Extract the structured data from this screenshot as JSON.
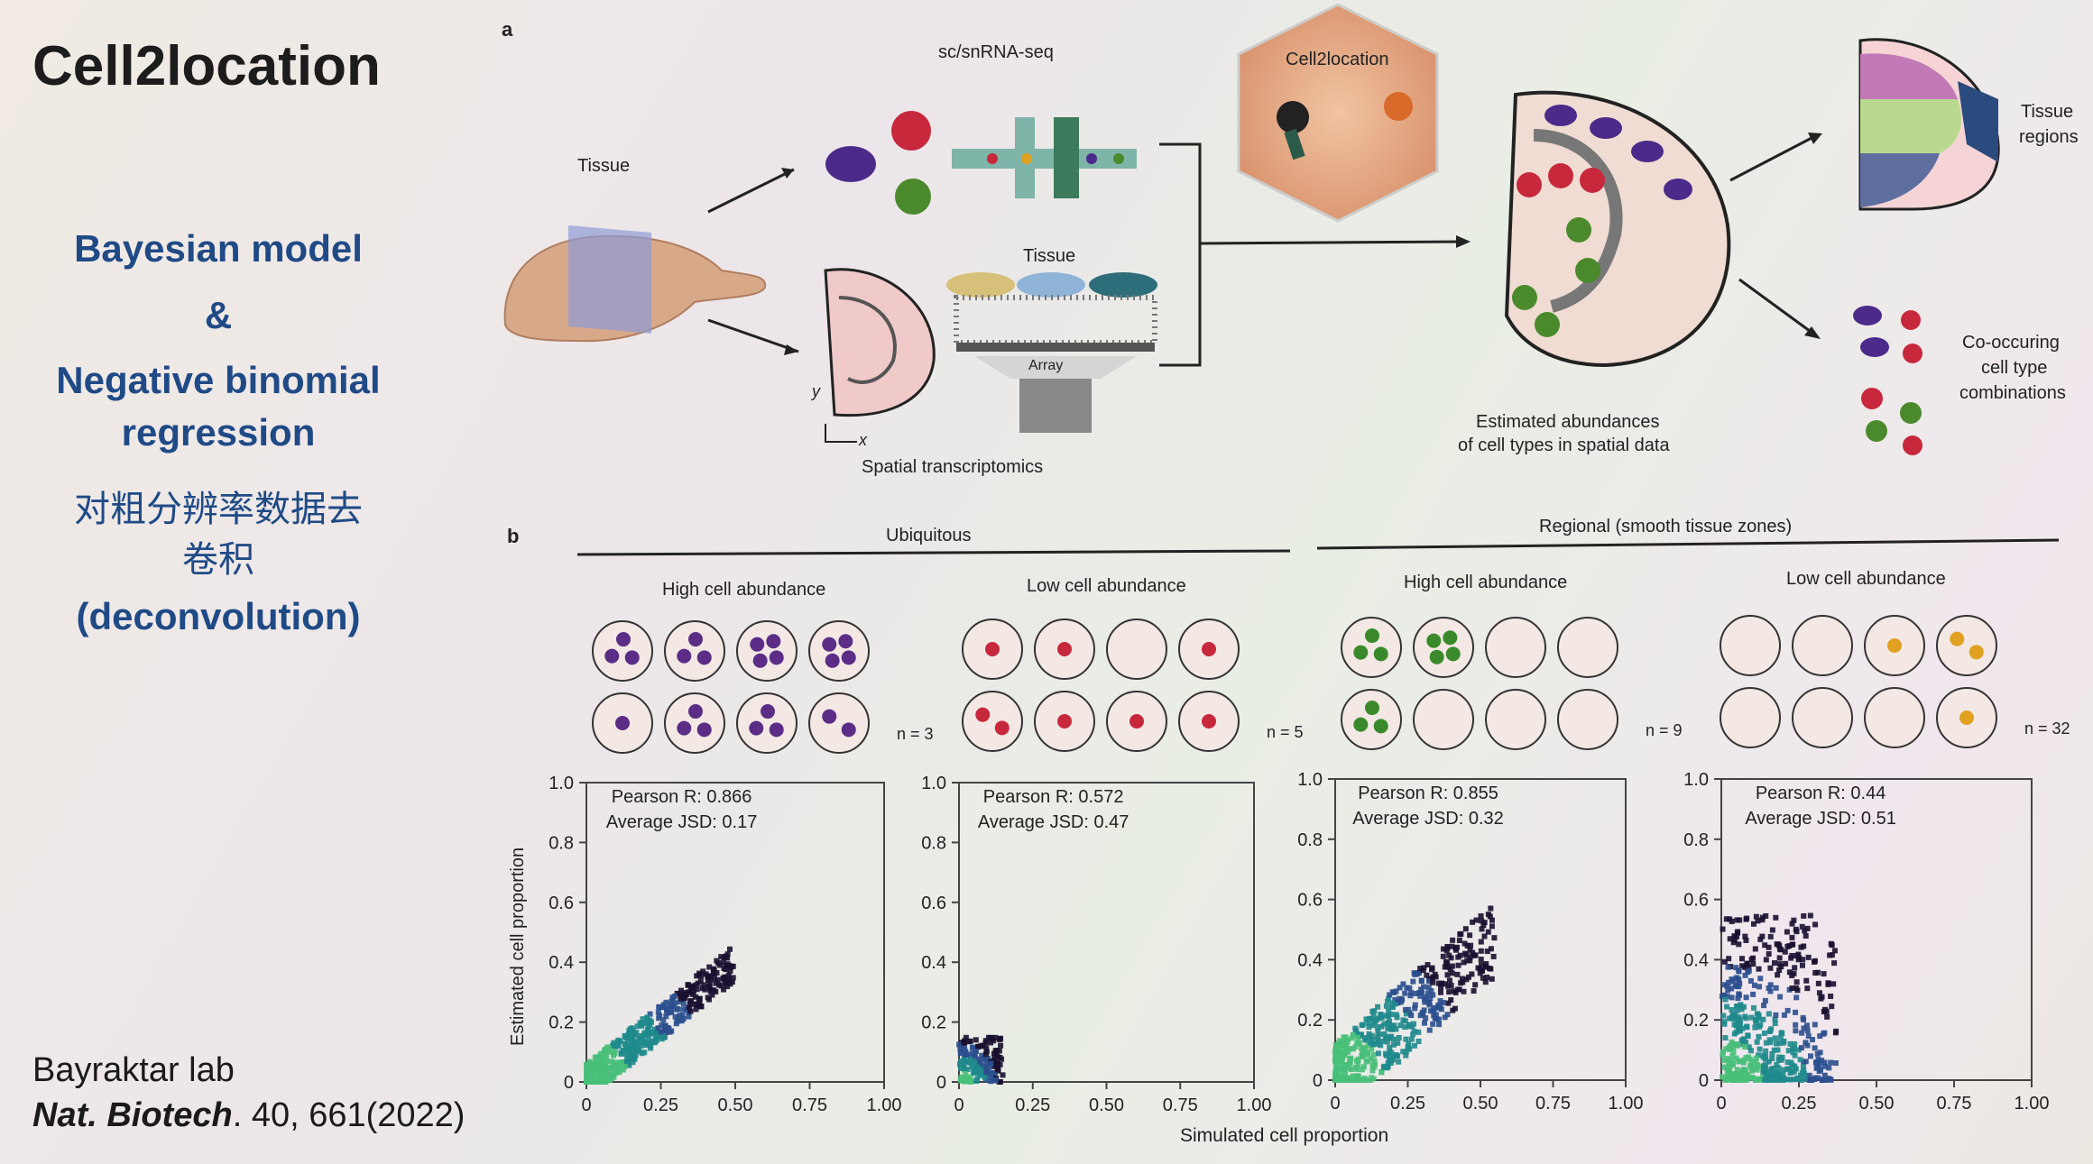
{
  "slide": {
    "title": "Cell2location",
    "method_line1": "Bayesian model",
    "method_line2": "&",
    "method_line3": "Negative binomial",
    "method_line4": "regression",
    "chinese_line1": "对粗分辨率数据去",
    "chinese_line2": "卷积",
    "deconvolution": "(deconvolution)",
    "lab": "Bayraktar lab",
    "journal": "Nat. Biotech",
    "journal_rest": ". 40, 661(2022)"
  },
  "figure_a": {
    "panel": "a",
    "scrna_label": "sc/snRNA-seq",
    "tissue_label": "Tissue",
    "tissue_label2": "Tissue",
    "array_label": "Array",
    "axis_y": "y",
    "axis_x": "x",
    "spatial_label": "Spatial transcriptomics",
    "model_label": "Cell2location",
    "estimated_line1": "Estimated abundances",
    "estimated_line2": "of cell types in spatial data",
    "regions_line1": "Tissue",
    "regions_line2": "regions",
    "cooccur_line1": "Co-occuring",
    "cooccur_line2": "cell type",
    "cooccur_line3": "combinations"
  },
  "figure_b": {
    "panel": "b",
    "group_ubiquitous": "Ubiquitous",
    "group_regional": "Regional (smooth tissue zones)",
    "xlabel": "Simulated cell proportion",
    "ylabel": "Estimated cell proportion"
  },
  "chart_data": [
    {
      "type": "heatmap",
      "title": "High cell abundance",
      "group": "Ubiquitous",
      "n_label": "n = 3",
      "cell_color": "#5b2d86",
      "circle_dots": [
        3,
        3,
        4,
        4,
        1,
        3,
        3,
        2
      ],
      "pearson": "Pearson R: 0.866",
      "jsd": "Average JSD: 0.17",
      "xlim": [
        0,
        1
      ],
      "ylim": [
        0,
        1
      ],
      "xticks": [
        "0",
        "0.25",
        "0.50",
        "0.75",
        "1.00"
      ],
      "yticks": [
        "0",
        "0.2",
        "0.4",
        "0.6",
        "0.8",
        "1.0"
      ],
      "xlabel": "",
      "ylabel": "Estimated cell proportion",
      "cloud": {
        "x_max": 0.5,
        "y_max": 0.42,
        "pattern": "diagonal"
      }
    },
    {
      "type": "heatmap",
      "title": "Low cell abundance",
      "group": "Ubiquitous",
      "n_label": "n = 5",
      "cell_color": "#c8283c",
      "circle_dots": [
        1,
        1,
        0,
        1,
        2,
        1,
        1,
        1
      ],
      "pearson": "Pearson R: 0.572",
      "jsd": "Average JSD: 0.47",
      "xlim": [
        0,
        1
      ],
      "ylim": [
        0,
        1
      ],
      "xticks": [
        "0",
        "0.25",
        "0.50",
        "0.75",
        "1.00"
      ],
      "yticks": [
        "0",
        "0.2",
        "0.4",
        "0.6",
        "0.8",
        "1.0"
      ],
      "xlabel": "",
      "ylabel": "",
      "cloud": {
        "x_max": 0.15,
        "y_max": 0.15,
        "pattern": "corner"
      }
    },
    {
      "type": "heatmap",
      "title": "High cell abundance",
      "group": "Regional (smooth tissue zones)",
      "n_label": "n = 9",
      "cell_color": "#3a8a2c",
      "circle_dots": [
        3,
        4,
        0,
        0,
        3,
        0,
        0,
        0
      ],
      "pearson": "Pearson R: 0.855",
      "jsd": "Average JSD: 0.32",
      "xlim": [
        0,
        1
      ],
      "ylim": [
        0,
        1
      ],
      "xticks": [
        "0",
        "0.25",
        "0.50",
        "0.75",
        "1.00"
      ],
      "yticks": [
        "0",
        "0.2",
        "0.4",
        "0.6",
        "0.8",
        "1.0"
      ],
      "xlabel": "Simulated cell proportion",
      "ylabel": "",
      "cloud": {
        "x_max": 0.55,
        "y_max": 0.6,
        "pattern": "diagonal-wide"
      }
    },
    {
      "type": "heatmap",
      "title": "Low cell abundance",
      "group": "Regional (smooth tissue zones)",
      "n_label": "n = 32",
      "cell_color": "#e0a020",
      "circle_dots": [
        0,
        0,
        1,
        2,
        0,
        0,
        0,
        1
      ],
      "pearson": "Pearson R: 0.44",
      "jsd": "Average JSD: 0.51",
      "xlim": [
        0,
        1
      ],
      "ylim": [
        0,
        1
      ],
      "xticks": [
        "0",
        "0.25",
        "0.50",
        "0.75",
        "1.00"
      ],
      "yticks": [
        "0",
        "0.2",
        "0.4",
        "0.6",
        "0.8",
        "1.0"
      ],
      "xlabel": "",
      "ylabel": "",
      "cloud": {
        "x_max": 0.45,
        "y_max": 0.55,
        "pattern": "vertical"
      }
    }
  ]
}
